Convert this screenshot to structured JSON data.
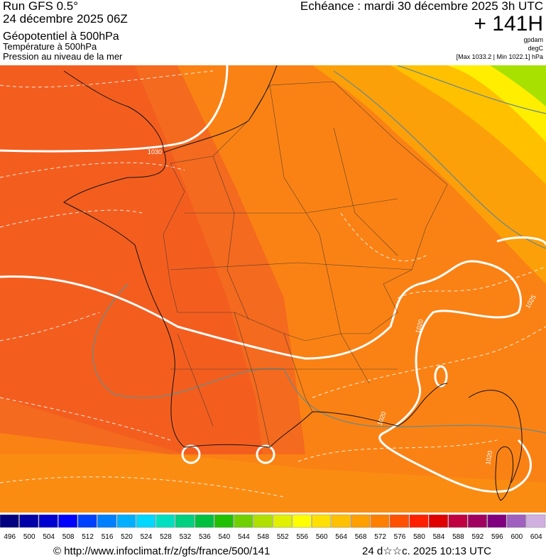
{
  "header": {
    "run": "Run GFS 0.5°",
    "run_date": "24 décembre 2025 06Z",
    "field": "Géopotentiel à 500hPa",
    "field2": "Température à 500hPa",
    "field3": "Pression au niveau de la mer",
    "valid": "Echéance : mardi 30 décembre 2025 3h UTC",
    "lead": "+ 141H",
    "unit1": "gpdam",
    "unit2": "degC",
    "range": "[Max 1033.2 | Min 1022.1] hPa"
  },
  "map": {
    "isobar_labels": [
      "1030",
      "1020",
      "1020",
      "1020",
      "1025"
    ]
  },
  "scale": {
    "values": [
      496,
      500,
      504,
      508,
      512,
      516,
      520,
      524,
      528,
      532,
      536,
      540,
      544,
      548,
      552,
      556,
      560,
      564,
      568,
      572,
      576,
      580,
      584,
      588,
      592,
      596,
      600,
      604
    ],
    "colors": [
      "#000080",
      "#0000a8",
      "#0000d0",
      "#0000ff",
      "#0040ff",
      "#0080ff",
      "#00b0ff",
      "#00d8ff",
      "#00e0c0",
      "#00d080",
      "#00c040",
      "#20c000",
      "#70d000",
      "#b0e000",
      "#e0f000",
      "#ffff00",
      "#ffe000",
      "#ffc000",
      "#ffa000",
      "#ff8000",
      "#ff5000",
      "#ff2000",
      "#e00000",
      "#c00040",
      "#a00060",
      "#800080",
      "#a060c0",
      "#d0b0e0"
    ]
  },
  "footer": {
    "source": "© http://www.infoclimat.fr/z/gfs/france/500/141",
    "stamp": "24 d☆☆c. 2025 10:13 UTC"
  }
}
